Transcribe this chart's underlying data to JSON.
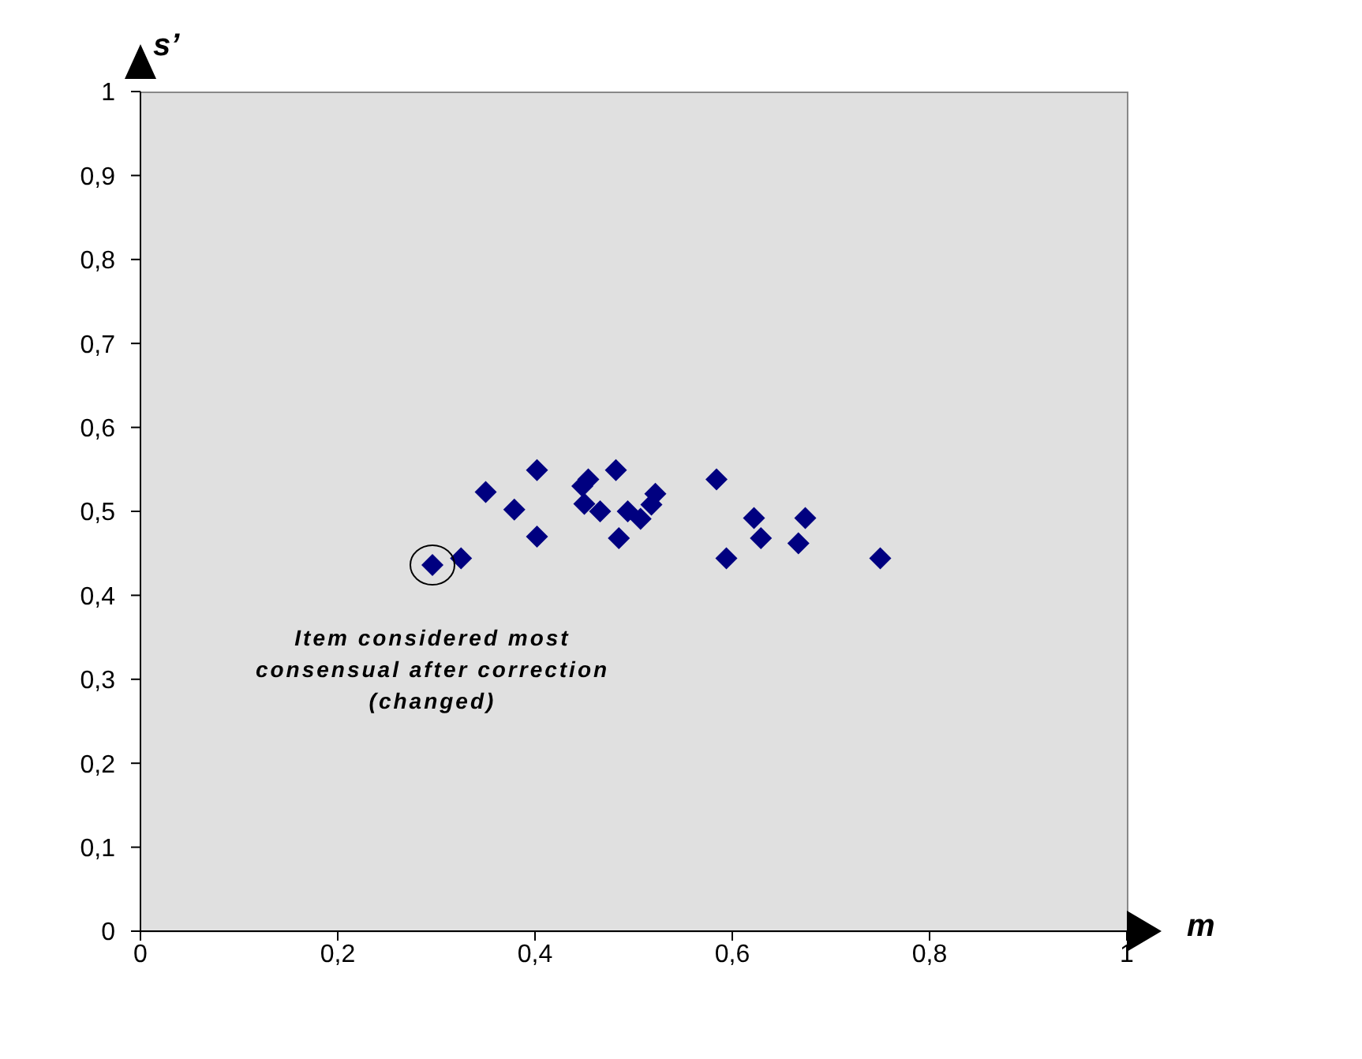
{
  "chart_data": {
    "type": "scatter",
    "xlabel": "m",
    "ylabel": "s’",
    "marker": "diamond",
    "annotations": [
      {
        "text": "Item considered most consensual after correction (changed)",
        "x": 0.296,
        "y": 0.436
      }
    ],
    "xlim": [
      0,
      1
    ],
    "ylim": [
      0,
      1
    ],
    "xticks": [
      0,
      {
        "value": 0.2,
        "label": "0,2"
      },
      {
        "value": 0.4,
        "label": "0,4"
      },
      {
        "value": 0.6,
        "label": "0,6"
      },
      {
        "value": 0.8,
        "label": "0,8"
      },
      1
    ],
    "yticks": [
      0,
      {
        "value": 0.1,
        "label": "0,1"
      },
      {
        "value": 0.2,
        "label": "0,2"
      },
      {
        "value": 0.3,
        "label": "0,3"
      },
      {
        "value": 0.4,
        "label": "0,4"
      },
      {
        "value": 0.5,
        "label": "0,5"
      },
      {
        "value": 0.6,
        "label": "0,6"
      },
      {
        "value": 0.7,
        "label": "0,7"
      },
      {
        "value": 0.8,
        "label": "0,8"
      },
      {
        "value": 0.9,
        "label": "0,9"
      },
      1
    ],
    "series": [
      {
        "color": "#000080",
        "x": [
          0.296,
          0.325,
          0.35,
          0.379,
          0.402,
          0.402,
          0.448,
          0.454,
          0.45,
          0.466,
          0.482,
          0.485,
          0.494,
          0.507,
          0.518,
          0.522,
          0.584,
          0.594,
          0.622,
          0.629,
          0.674,
          0.667,
          0.75
        ],
        "values": [
          0.436,
          0.444,
          0.523,
          0.502,
          0.549,
          0.47,
          0.53,
          0.538,
          0.509,
          0.5,
          0.549,
          0.468,
          0.5,
          0.491,
          0.508,
          0.521,
          0.538,
          0.444,
          0.492,
          0.468,
          0.492,
          0.462,
          0.444
        ]
      }
    ]
  }
}
